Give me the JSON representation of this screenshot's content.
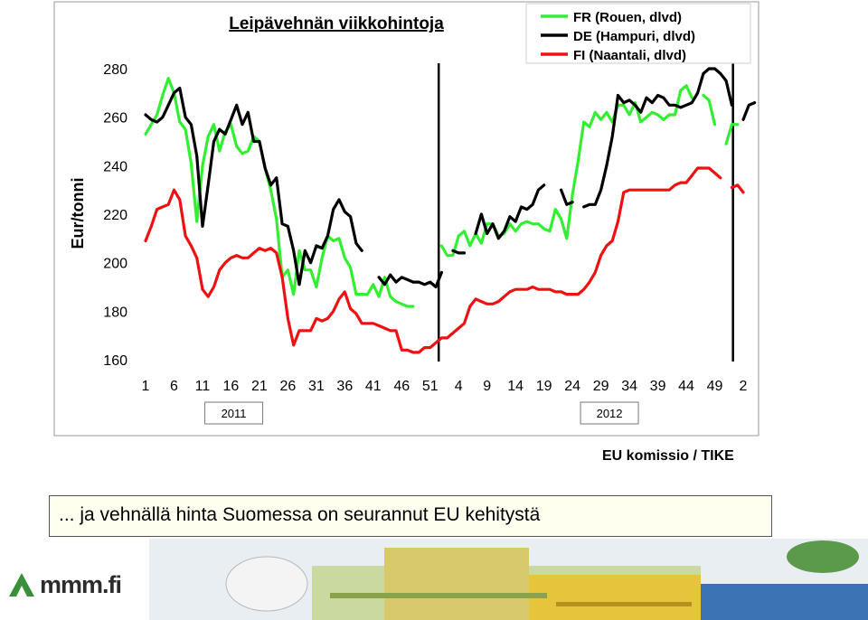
{
  "chart_data": {
    "type": "line",
    "title": "Leipävehnän viikkohintoja",
    "ylabel": "Eur/tonni",
    "xlabel": "",
    "ylim": [
      160,
      280
    ],
    "yticks": [
      160,
      180,
      200,
      220,
      240,
      260,
      280
    ],
    "xtick_labels": [
      "1",
      "6",
      "11",
      "16",
      "21",
      "26",
      "31",
      "36",
      "41",
      "46",
      "51",
      "4",
      "9",
      "14",
      "19",
      "24",
      "29",
      "34",
      "39",
      "44",
      "49",
      "2"
    ],
    "year_labels": [
      "2011",
      "2012"
    ],
    "grid": false,
    "legend_position": "top-right",
    "series": [
      {
        "name": "FR (Rouen, dlvd)",
        "color": "#33ee33",
        "values": [
          253,
          257,
          261,
          269,
          276,
          270,
          258,
          255,
          241,
          217,
          240,
          252,
          257,
          246,
          254,
          257,
          248,
          245,
          246,
          252,
          250,
          239,
          230,
          218,
          194,
          197,
          187,
          205,
          197,
          197,
          190,
          202,
          211,
          209,
          210,
          202,
          198,
          187,
          187,
          187,
          191,
          186,
          194,
          186,
          184,
          183,
          182,
          182,
          null,
          null,
          null,
          null,
          207,
          203,
          203,
          211,
          213,
          207,
          212,
          208,
          216,
          216,
          211,
          212,
          216,
          213,
          216,
          217,
          216,
          216,
          214,
          213,
          222,
          218,
          210,
          228,
          242,
          258,
          256,
          262,
          259,
          262,
          258,
          265,
          265,
          261,
          266,
          258,
          260,
          262,
          261,
          259,
          261,
          261,
          271,
          273,
          268,
          null,
          269,
          267,
          257,
          null,
          249,
          257,
          257
        ]
      },
      {
        "name": "DE (Hampuri, dlvd)",
        "color": "#000000",
        "values": [
          261,
          259,
          258,
          260,
          265,
          270,
          272,
          260,
          257,
          244,
          215,
          232,
          250,
          255,
          253,
          259,
          265,
          257,
          262,
          250,
          250,
          239,
          232,
          235,
          216,
          215,
          205,
          191,
          205,
          200,
          207,
          206,
          211,
          222,
          226,
          221,
          219,
          208,
          205,
          null,
          null,
          194,
          191,
          195,
          192,
          194,
          193,
          192,
          192,
          191,
          192,
          190,
          196,
          null,
          205,
          204,
          204,
          null,
          212,
          220,
          212,
          216,
          210,
          213,
          219,
          217,
          223,
          222,
          224,
          230,
          232,
          null,
          null,
          230,
          224,
          225,
          null,
          223,
          224,
          224,
          230,
          240,
          252,
          269,
          266,
          267,
          265,
          262,
          268,
          266,
          269,
          268,
          265,
          265,
          264,
          265,
          266,
          270,
          278,
          280,
          280,
          278,
          275,
          265,
          null,
          259,
          265,
          266
        ]
      },
      {
        "name": "FI (Naantali, dlvd)",
        "color": "#ee1111",
        "values": [
          209,
          215,
          222,
          223,
          224,
          230,
          226,
          211,
          207,
          202,
          189,
          186,
          190,
          197,
          200,
          202,
          203,
          202,
          202,
          204,
          206,
          205,
          206,
          204,
          194,
          177,
          166,
          172,
          172,
          172,
          177,
          176,
          177,
          180,
          185,
          188,
          181,
          179,
          175,
          175,
          175,
          174,
          173,
          172,
          172,
          164,
          164,
          163,
          163,
          165,
          165,
          167,
          169,
          169,
          171,
          173,
          175,
          182,
          185,
          184,
          183,
          183,
          184,
          186,
          188,
          189,
          189,
          189,
          190,
          189,
          189,
          189,
          188,
          188,
          187,
          187,
          187,
          189,
          192,
          196,
          203,
          207,
          209,
          217,
          229,
          230,
          230,
          230,
          230,
          230,
          230,
          230,
          230,
          232,
          233,
          233,
          236,
          239,
          239,
          239,
          237,
          235,
          null,
          231,
          232,
          229
        ]
      }
    ],
    "year_dividers": [
      "week 52, 2011",
      "week 52, 2012"
    ]
  },
  "caption": "... ja vehnällä hinta Suomessa on seurannut EU kehitystä",
  "source": "EU komissio / TIKE",
  "logo_text": "mmm.fi",
  "colors": {
    "caption_bg": "#fffff0",
    "fr": "#33ee33",
    "de": "#000000",
    "fi": "#ee1111"
  }
}
